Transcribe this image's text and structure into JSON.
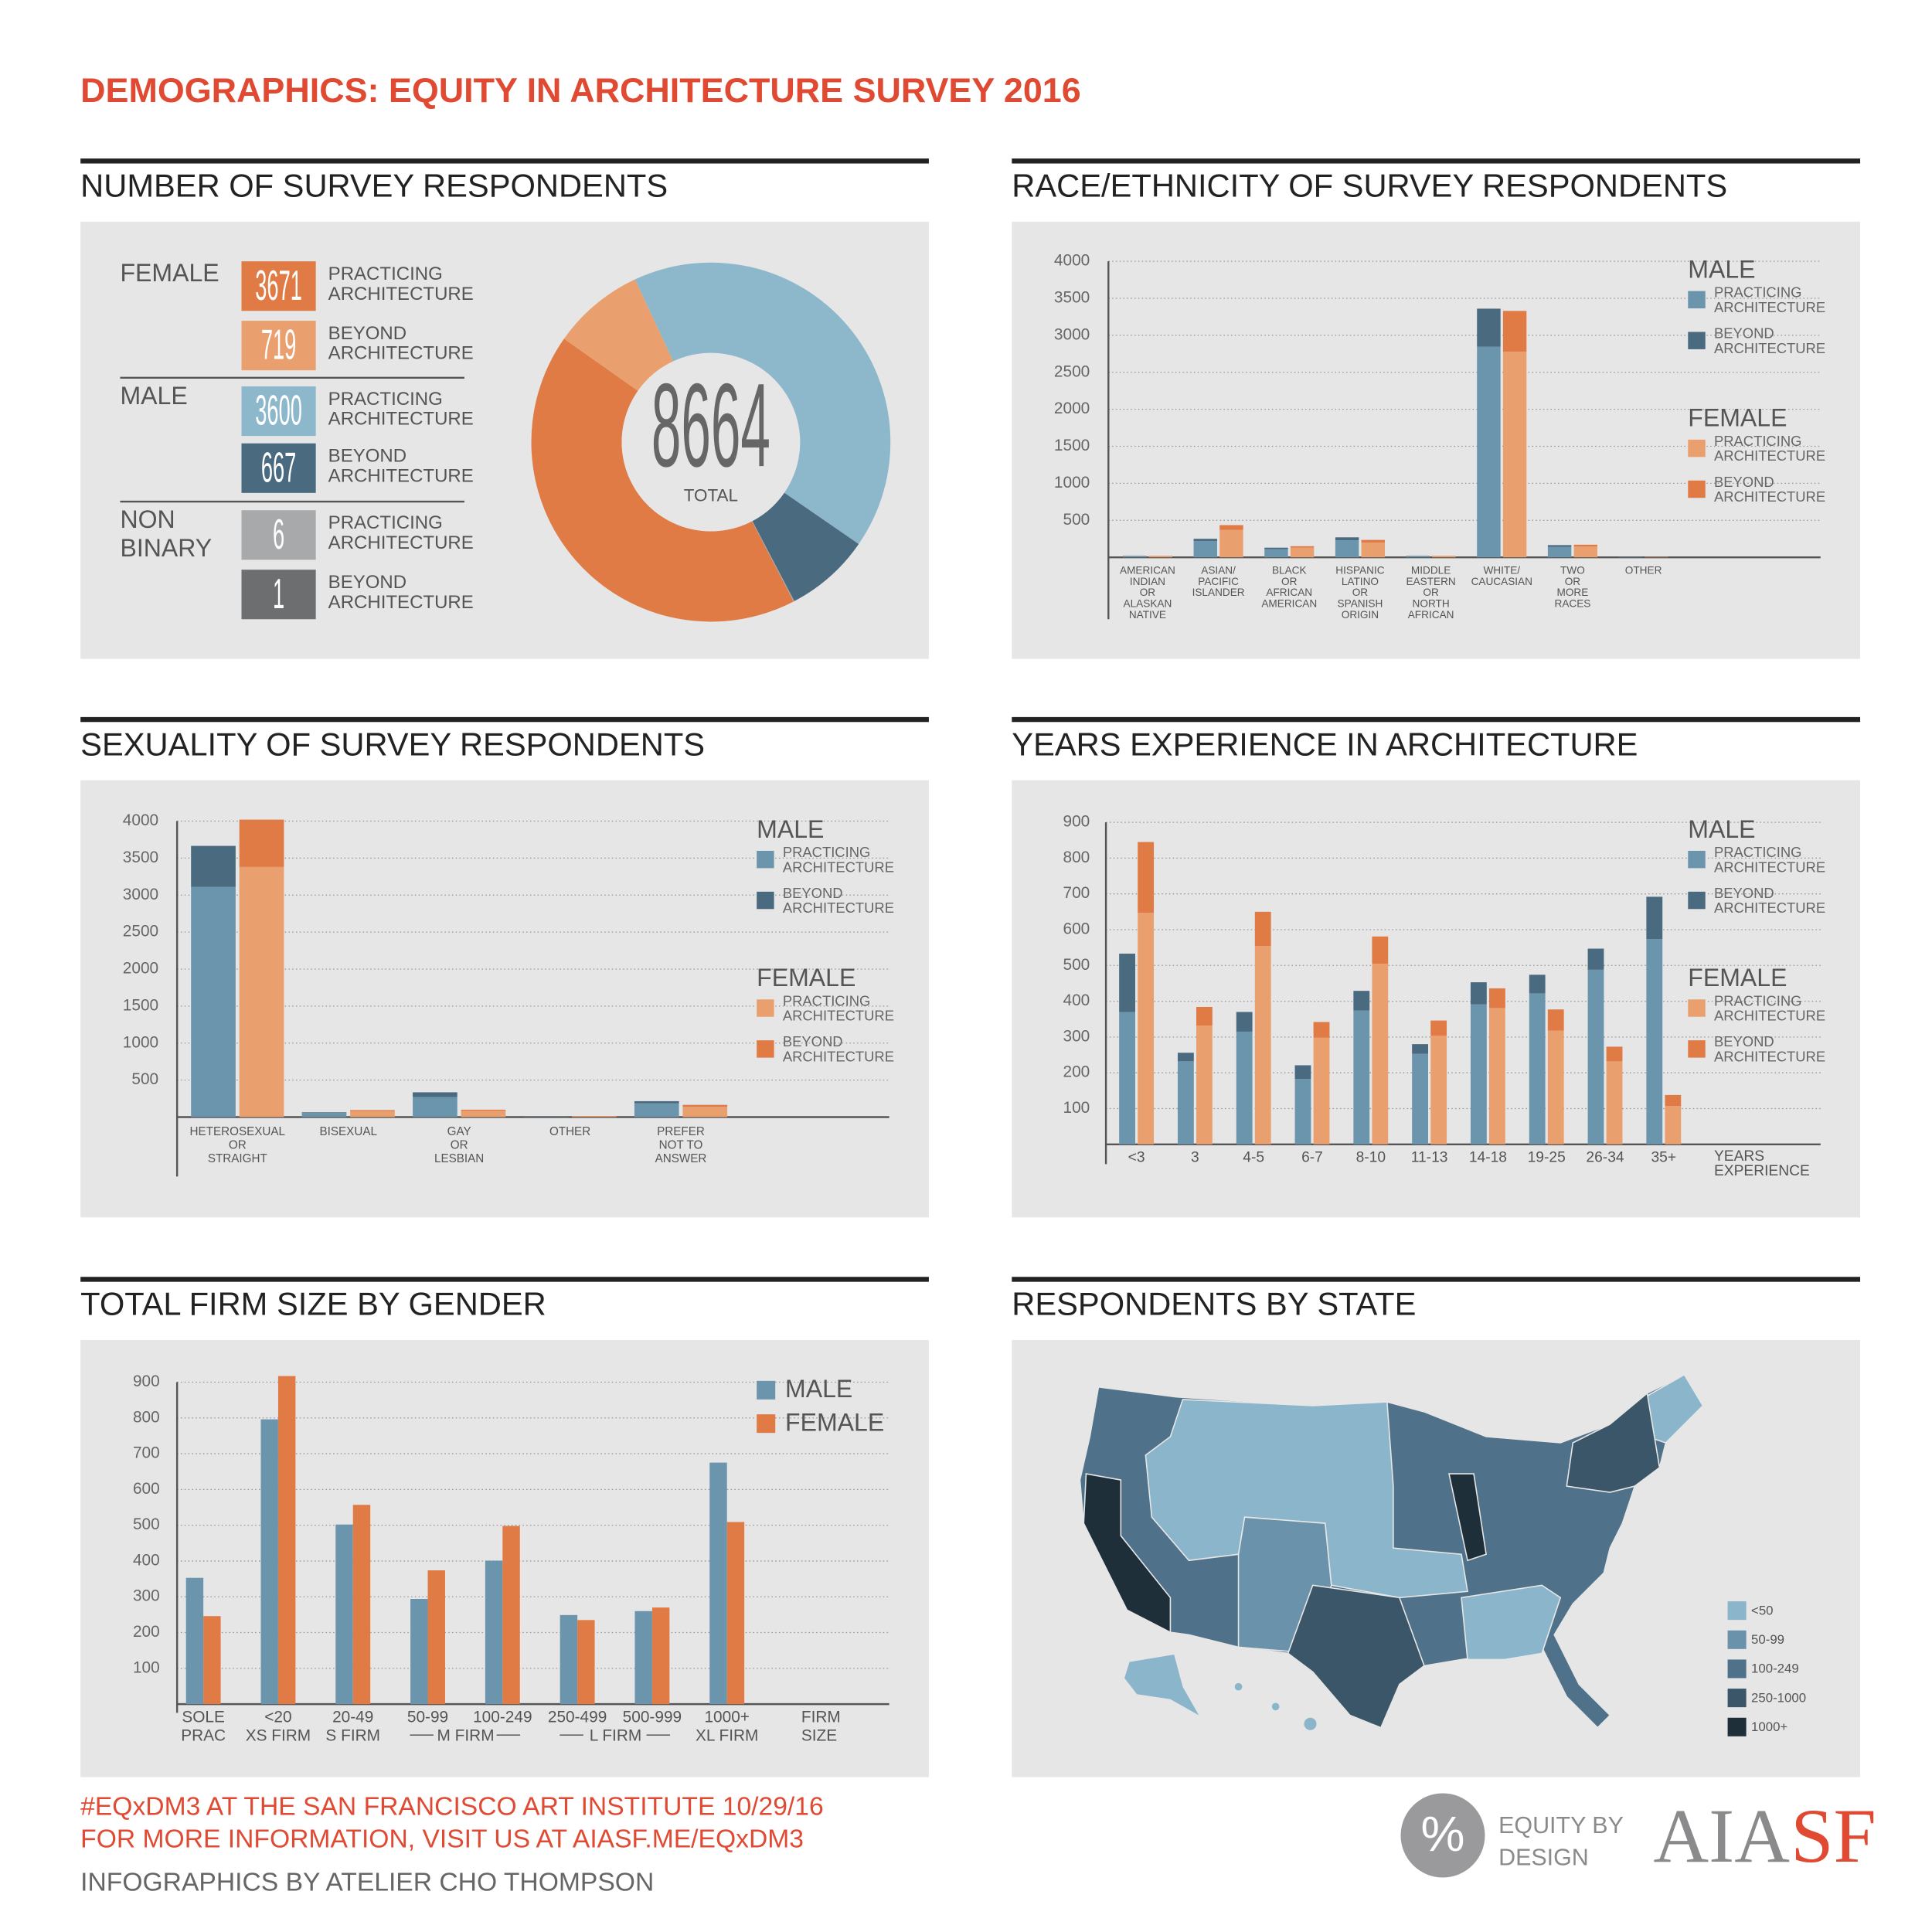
{
  "title": "DEMOGRAPHICS: EQUITY IN ARCHITECTURE SURVEY 2016",
  "footer": [
    "#EQxDM3 AT THE SAN FRANCISCO ART INSTITUTE 10/29/16",
    "FOR MORE INFORMATION, VISIT US AT AIASF.ME/EQxDM3",
    "INFOGRAPHICS BY ATELIER CHO THOMPSON"
  ],
  "logos": {
    "badge": "%",
    "equity": [
      "EQUITY BY",
      "DESIGN"
    ],
    "aiasf": [
      "AIA",
      "SF"
    ]
  },
  "chart_data": [
    {
      "type": "donut",
      "title": "NUMBER OF SURVEY RESPONDENTS",
      "groups": [
        {
          "name": [
            "FEMALE"
          ],
          "labels": [
            [
              "PRACTICING",
              "ARCHITECTURE"
            ],
            [
              "BEYOND",
              "ARCHITECTURE"
            ]
          ],
          "values": [
            3671,
            719
          ],
          "colors": [
            "#e07b45",
            "#eaa06e"
          ]
        },
        {
          "name": [
            "MALE"
          ],
          "labels": [
            [
              "PRACTICING",
              "ARCHITECTURE"
            ],
            [
              "BEYOND",
              "ARCHITECTURE"
            ]
          ],
          "values": [
            3600,
            667
          ],
          "colors": [
            "#8db8cc",
            "#4a6a80"
          ]
        },
        {
          "name": [
            "NON",
            "BINARY"
          ],
          "labels": [
            [
              "PRACTICING",
              "ARCHITECTURE"
            ],
            [
              "BEYOND",
              "ARCHITECTURE"
            ]
          ],
          "values": [
            6,
            1
          ],
          "colors": [
            "#a8a9ab",
            "#6d6e70"
          ]
        }
      ],
      "total": 8664,
      "total_label": "TOTAL"
    },
    {
      "type": "stacked-bar",
      "title": "RACE/ETHNICITY OF SURVEY RESPONDENTS",
      "categories": [
        [
          "AMERICAN",
          "INDIAN",
          "OR",
          "ALASKAN",
          "NATIVE"
        ],
        [
          "ASIAN/",
          "PACIFIC",
          "ISLANDER"
        ],
        [
          "BLACK",
          "OR",
          "AFRICAN",
          "AMERICAN"
        ],
        [
          "HISPANIC",
          "LATINO",
          "OR",
          "SPANISH",
          "ORIGIN"
        ],
        [
          "MIDDLE",
          "EASTERN",
          "OR",
          "NORTH",
          "AFRICAN"
        ],
        [
          "WHITE/",
          "CAUCASIAN"
        ],
        [
          "TWO",
          "OR",
          "MORE",
          "RACES"
        ],
        [
          "OTHER"
        ]
      ],
      "ylim": [
        0,
        4000
      ],
      "yticks": [
        500,
        1000,
        1500,
        2000,
        2500,
        3000,
        3500,
        4000
      ],
      "grid": true,
      "stacks": [
        {
          "name": "MALE",
          "series": [
            {
              "name": [
                "PRACTICING",
                "ARCHITECTURE"
              ],
              "color": "#6b95ad",
              "values": [
                15,
                220,
                110,
                230,
                15,
                2845,
                140,
                5
              ]
            },
            {
              "name": [
                "BEYOND",
                "ARCHITECTURE"
              ],
              "color": "#4a6a80",
              "values": [
                5,
                30,
                20,
                40,
                5,
                515,
                25,
                2
              ]
            }
          ]
        },
        {
          "name": "FEMALE",
          "series": [
            {
              "name": [
                "PRACTICING",
                "ARCHITECTURE"
              ],
              "color": "#eaa06e",
              "values": [
                15,
                370,
                130,
                200,
                15,
                2780,
                145,
                5
              ]
            },
            {
              "name": [
                "BEYOND",
                "ARCHITECTURE"
              ],
              "color": "#e07b45",
              "values": [
                5,
                65,
                20,
                35,
                5,
                550,
                25,
                2
              ]
            }
          ]
        }
      ]
    },
    {
      "type": "stacked-bar",
      "title": "SEXUALITY OF SURVEY RESPONDENTS",
      "categories": [
        [
          "HETEROSEXUAL",
          "OR",
          "STRAIGHT"
        ],
        [
          "BISEXUAL"
        ],
        [
          "GAY",
          "OR",
          "LESBIAN"
        ],
        [
          "OTHER"
        ],
        [
          "PREFER",
          "NOT TO",
          "ANSWER"
        ]
      ],
      "ylim": [
        0,
        4000
      ],
      "yticks": [
        500,
        1000,
        1500,
        2000,
        2500,
        3000,
        3500,
        4000
      ],
      "grid": true,
      "stacks": [
        {
          "name": "MALE",
          "series": [
            {
              "name": [
                "PRACTICING",
                "ARCHITECTURE"
              ],
              "color": "#6b95ad",
              "values": [
                3110,
                55,
                270,
                4,
                185
              ]
            },
            {
              "name": [
                "BEYOND",
                "ARCHITECTURE"
              ],
              "color": "#4a6a80",
              "values": [
                555,
                10,
                65,
                1,
                30
              ]
            }
          ]
        },
        {
          "name": "FEMALE",
          "series": [
            {
              "name": [
                "PRACTICING",
                "ARCHITECTURE"
              ],
              "color": "#eaa06e",
              "values": [
                3380,
                80,
                85,
                12,
                140
              ]
            },
            {
              "name": [
                "BEYOND",
                "ARCHITECTURE"
              ],
              "color": "#e07b45",
              "values": [
                640,
                15,
                15,
                3,
                25
              ]
            }
          ]
        }
      ]
    },
    {
      "type": "stacked-bar",
      "title": "YEARS EXPERIENCE IN ARCHITECTURE",
      "categories": [
        "<3",
        "3",
        "4-5",
        "6-7",
        "8-10",
        "11-13",
        "14-18",
        "19-25",
        "26-34",
        "35+"
      ],
      "x_label": [
        "YEARS",
        "EXPERIENCE"
      ],
      "ylim": [
        0,
        900
      ],
      "yticks": [
        100,
        200,
        300,
        400,
        500,
        600,
        700,
        800,
        900
      ],
      "grid": true,
      "stacks": [
        {
          "name": "MALE",
          "series": [
            {
              "name": [
                "PRACTICING",
                "ARCHITECTURE"
              ],
              "color": "#6b95ad",
              "values": [
                370,
                232,
                315,
                183,
                374,
                253,
                391,
                422,
                488,
                574
              ]
            },
            {
              "name": [
                "BEYOND",
                "ARCHITECTURE"
              ],
              "color": "#4a6a80",
              "values": [
                163,
                24,
                55,
                38,
                55,
                27,
                62,
                52,
                59,
                118
              ]
            }
          ]
        },
        {
          "name": "FEMALE",
          "series": [
            {
              "name": [
                "PRACTICING",
                "ARCHITECTURE"
              ],
              "color": "#eaa06e",
              "values": [
                647,
                332,
                554,
                298,
                505,
                304,
                381,
                318,
                232,
                107
              ]
            },
            {
              "name": [
                "BEYOND",
                "ARCHITECTURE"
              ],
              "color": "#e07b45",
              "values": [
                198,
                52,
                96,
                44,
                76,
                42,
                55,
                59,
                41,
                31
              ]
            }
          ]
        }
      ]
    },
    {
      "type": "grouped-bar",
      "title": "TOTAL FIRM SIZE BY GENDER",
      "categories": [
        [
          "SOLE",
          "PRAC"
        ],
        [
          "<20",
          "XS FIRM"
        ],
        [
          "20-49",
          "S FIRM"
        ],
        [
          "50-99"
        ],
        [
          "100-249"
        ],
        [
          "250-499"
        ],
        [
          "500-999"
        ],
        [
          "1000+",
          "XL FIRM"
        ]
      ],
      "group_labels": [
        "M FIRM",
        "L FIRM"
      ],
      "x_label": [
        "FIRM",
        "SIZE"
      ],
      "ylim": [
        0,
        900
      ],
      "yticks": [
        100,
        200,
        300,
        400,
        500,
        600,
        700,
        800,
        900
      ],
      "grid": true,
      "series": [
        {
          "name": "MALE",
          "color": "#6b95ad",
          "values": [
            353,
            796,
            502,
            294,
            401,
            249,
            260,
            675
          ]
        },
        {
          "name": "FEMALE",
          "color": "#e07b45",
          "values": [
            246,
            917,
            557,
            374,
            498,
            235,
            270,
            509
          ]
        }
      ]
    },
    {
      "type": "map",
      "title": "RESPONDENTS BY STATE",
      "legend": [
        {
          "label": "<50",
          "color": "#8ab5ca"
        },
        {
          "label": "50-99",
          "color": "#6a93ab"
        },
        {
          "label": "100-249",
          "color": "#4f7189"
        },
        {
          "label": "250-1000",
          "color": "#3b5668"
        },
        {
          "label": "1000+",
          "color": "#1f2f3a"
        }
      ]
    }
  ]
}
